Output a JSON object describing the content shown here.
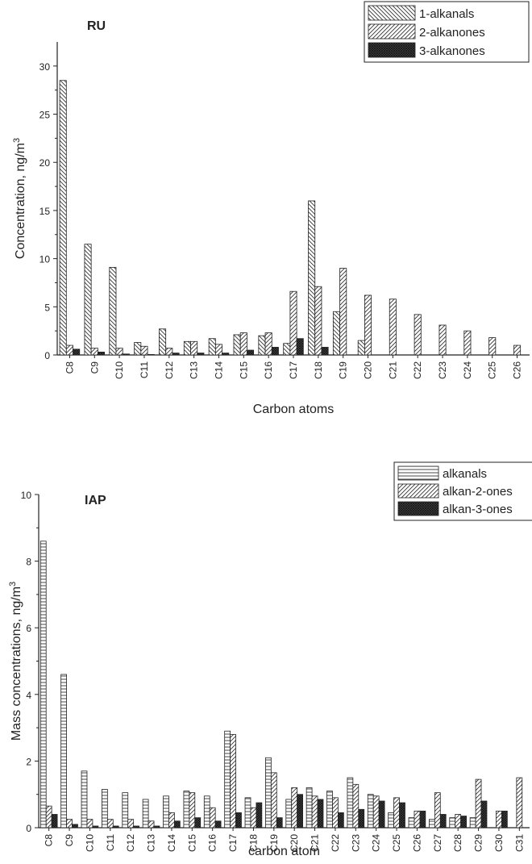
{
  "chart_data": [
    {
      "type": "bar",
      "title": "RU",
      "xlabel": "Carbon atoms",
      "ylabel": "Concentration, ng/m",
      "ylabel_sup": "3",
      "ylim": [
        0,
        32.5
      ],
      "yticks": [
        0,
        5,
        10,
        15,
        20,
        25,
        30
      ],
      "grid": false,
      "legend_position": "top-right",
      "categories": [
        "C8",
        "C9",
        "C10",
        "C11",
        "C12",
        "C13",
        "C14",
        "C15",
        "C16",
        "C17",
        "C18",
        "C19",
        "C20",
        "C21",
        "C22",
        "C23",
        "C24",
        "C25",
        "C26"
      ],
      "series": [
        {
          "name": "1-alkanals",
          "pattern": "back-diagonal",
          "color": "#ffffff",
          "values": [
            28.5,
            11.5,
            9.1,
            1.3,
            2.7,
            1.4,
            1.7,
            2.1,
            2.0,
            1.2,
            16.0,
            4.5,
            1.5,
            0,
            0,
            0,
            0,
            0,
            0
          ]
        },
        {
          "name": "2-alkanones",
          "pattern": "forward-diagonal",
          "color": "#ffffff",
          "values": [
            1.0,
            0.7,
            0.7,
            0.9,
            0.7,
            1.4,
            1.1,
            2.3,
            2.3,
            6.6,
            7.1,
            9.0,
            6.2,
            5.8,
            4.2,
            3.1,
            2.5,
            1.8,
            1.0
          ]
        },
        {
          "name": "3-alkanones",
          "pattern": "dark-crosshatch",
          "color": "#333333",
          "values": [
            0.6,
            0.3,
            0.1,
            0.05,
            0.2,
            0.2,
            0.2,
            0.5,
            0.8,
            1.7,
            0.8,
            0,
            0,
            0,
            0,
            0,
            0,
            0,
            0
          ]
        }
      ]
    },
    {
      "type": "bar",
      "title": "IAP",
      "xlabel": "carbon atom",
      "ylabel": "Mass concentrations, ng/m",
      "ylabel_sup": "3",
      "ylim": [
        0,
        10
      ],
      "yticks": [
        0,
        2,
        4,
        6,
        8,
        10
      ],
      "grid": false,
      "legend_position": "top-right",
      "categories": [
        "C8",
        "C9",
        "C10",
        "C11",
        "C12",
        "C13",
        "C14",
        "C15",
        "C16",
        "C17",
        "C18",
        "C19",
        "C20",
        "C21",
        "C22",
        "C23",
        "C24",
        "C25",
        "C26",
        "C27",
        "C28",
        "C29",
        "C30",
        "C31"
      ],
      "series": [
        {
          "name": "alkanals",
          "pattern": "horizontal",
          "color": "#ffffff",
          "values": [
            8.6,
            4.6,
            1.7,
            1.15,
            1.05,
            0.85,
            0.95,
            1.1,
            0.95,
            2.9,
            0.9,
            2.1,
            0.85,
            1.2,
            1.1,
            1.5,
            1.0,
            0.45,
            0.3,
            0.25,
            0.3,
            0.3,
            0.0,
            0.0
          ]
        },
        {
          "name": "alkan-2-ones",
          "pattern": "forward-diagonal",
          "color": "#ffffff",
          "values": [
            0.65,
            0.25,
            0.25,
            0.25,
            0.25,
            0.2,
            0.45,
            1.05,
            0.6,
            2.8,
            0.6,
            1.65,
            1.2,
            0.95,
            0.9,
            1.3,
            0.95,
            0.9,
            0.5,
            1.05,
            0.4,
            1.45,
            0.5,
            1.5
          ]
        },
        {
          "name": "alkan-3-ones",
          "pattern": "dark-crosshatch",
          "color": "#555555",
          "values": [
            0.4,
            0.1,
            0.05,
            0.05,
            0.05,
            0.05,
            0.2,
            0.3,
            0.2,
            0.45,
            0.75,
            0.3,
            1.0,
            0.85,
            0.45,
            0.55,
            0.8,
            0.75,
            0.5,
            0.4,
            0.35,
            0.8,
            0.5,
            0.0
          ]
        }
      ]
    }
  ]
}
